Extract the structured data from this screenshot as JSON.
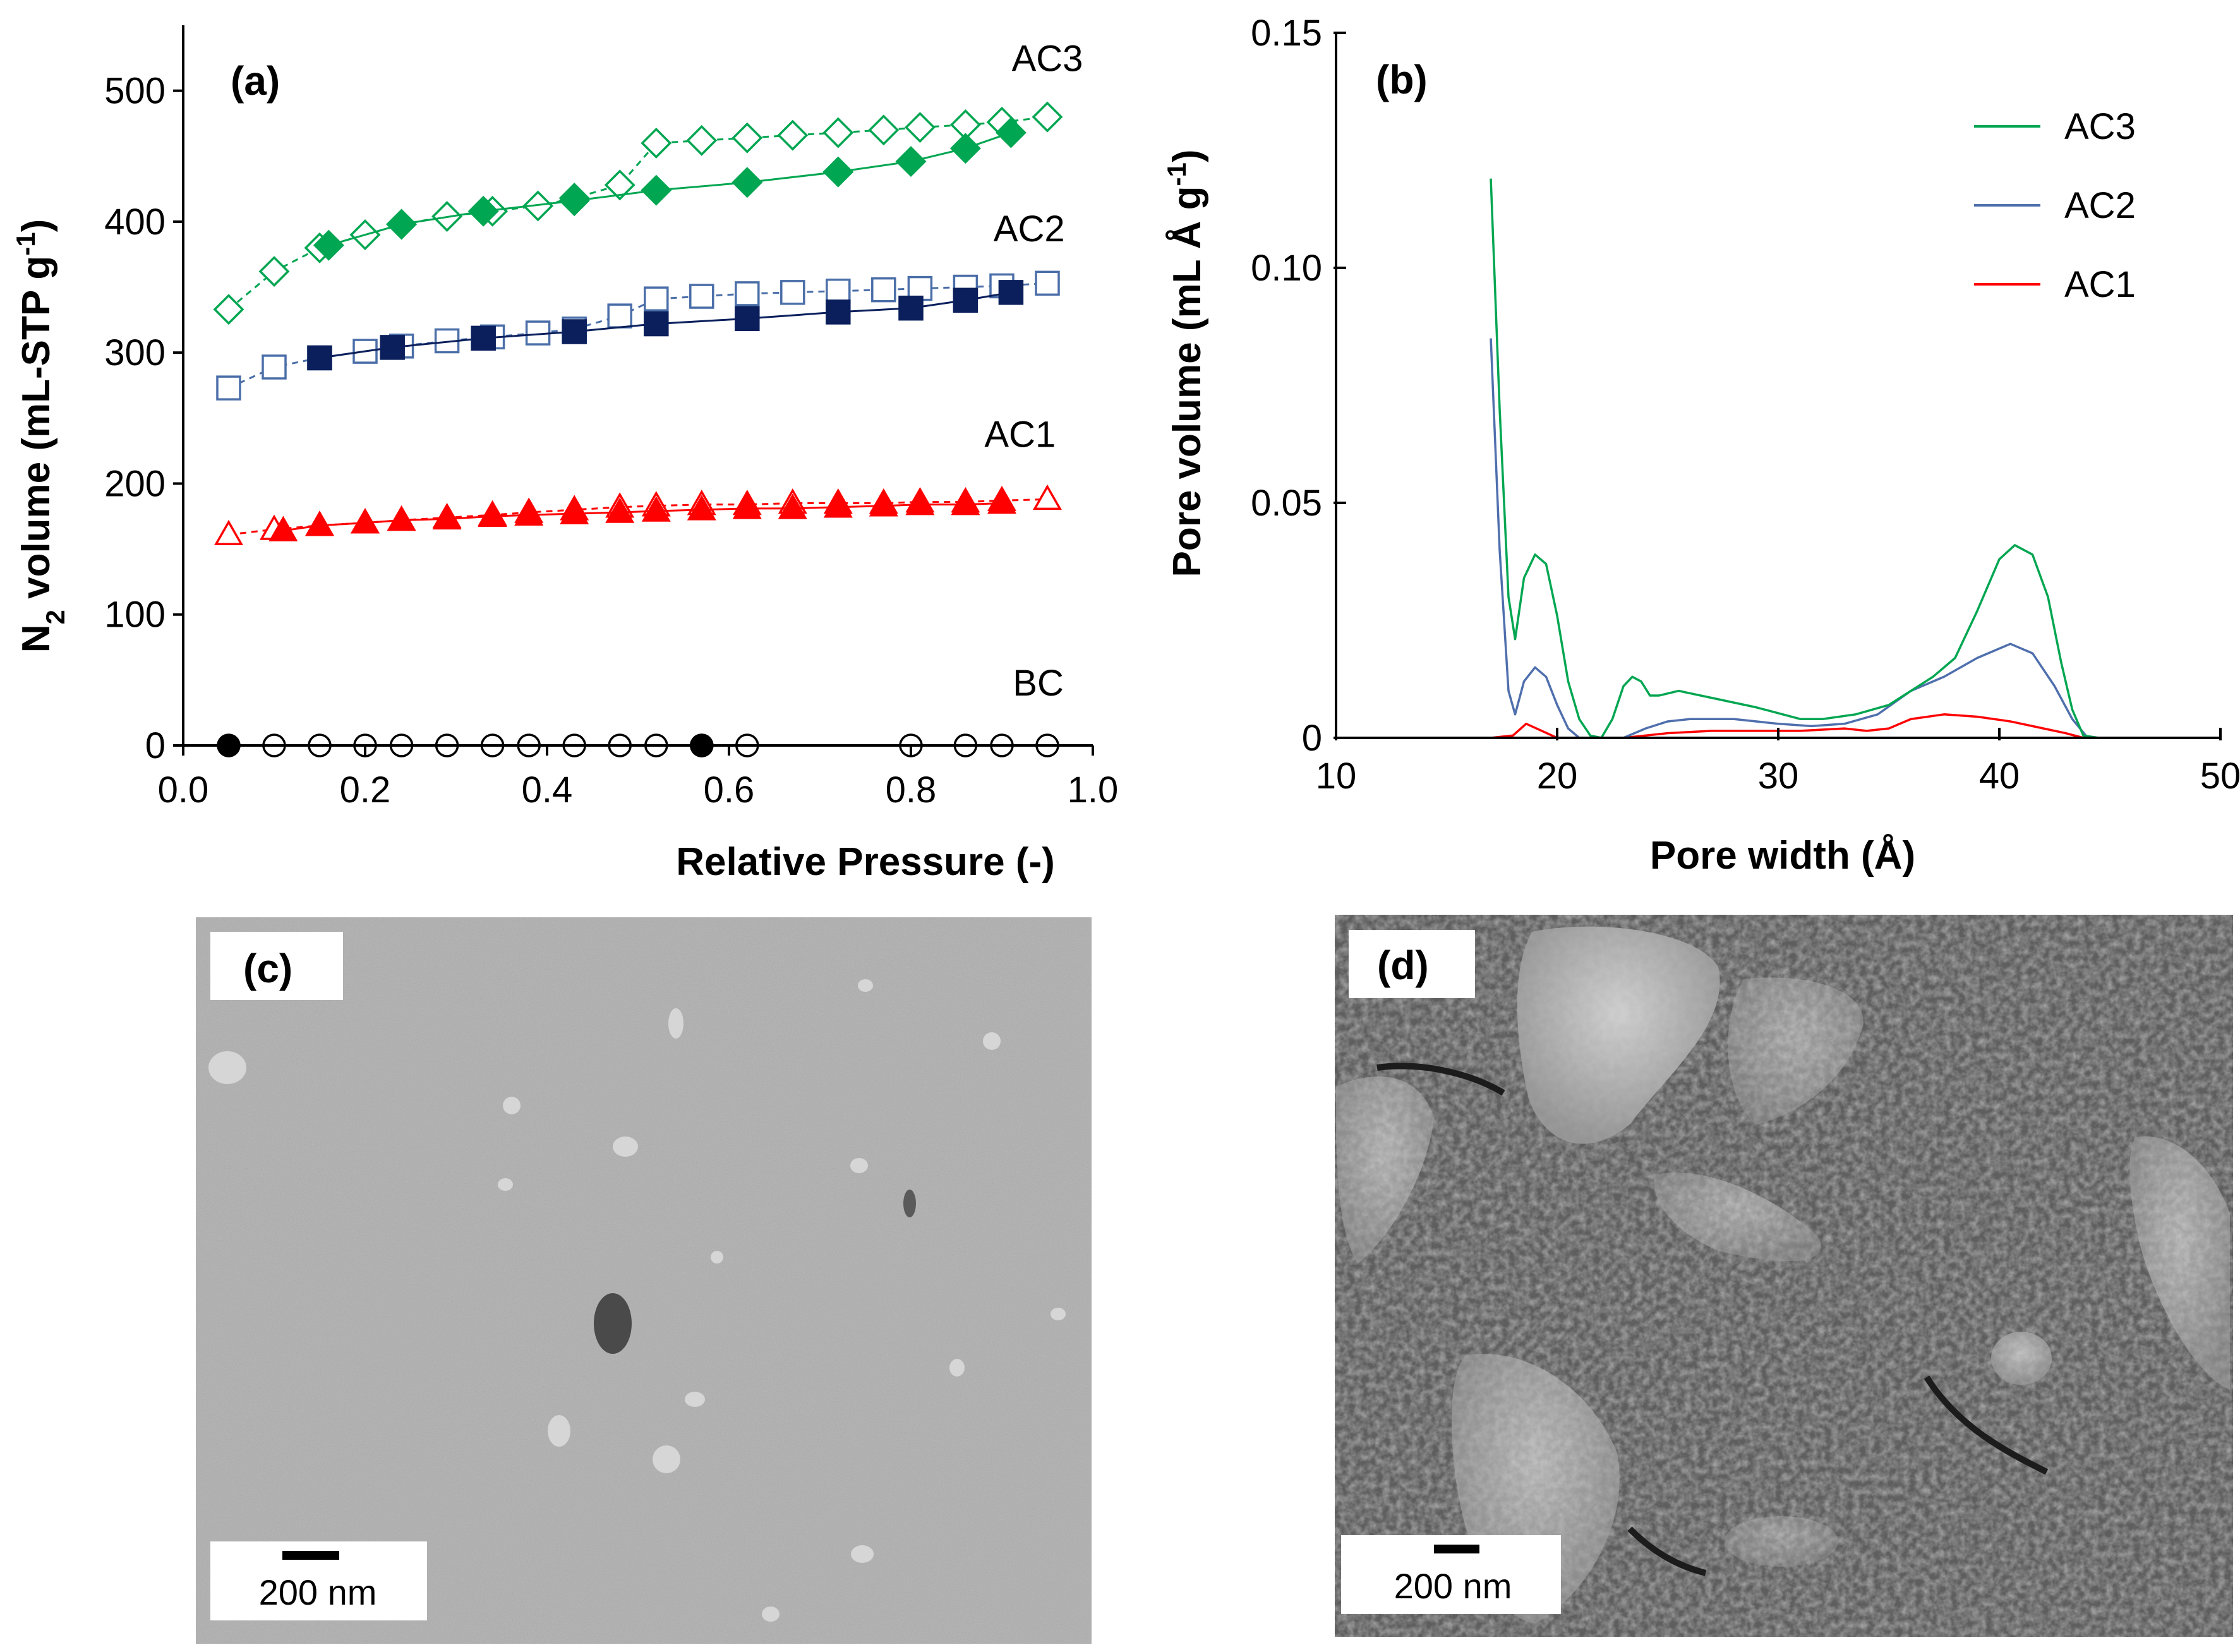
{
  "chart_data": [
    {
      "panel": "(a)",
      "type": "scatter",
      "xlabel": "Relative Pressure (-)",
      "ylabel": "N2 volume (mL-STP g-1)",
      "xlim": [
        0.0,
        1.0
      ],
      "ylim": [
        0,
        550
      ],
      "x_ticks": [
        "0.0",
        "0.2",
        "0.4",
        "0.6",
        "0.8",
        "1.0"
      ],
      "y_ticks": [
        "0",
        "100",
        "200",
        "300",
        "400",
        "500"
      ],
      "grid": false,
      "series": [
        {
          "name": "AC3",
          "color": "#00a651",
          "marker": "diamond",
          "branch": "adsorption",
          "x": [
            0.16,
            0.24,
            0.33,
            0.43,
            0.52,
            0.62,
            0.72,
            0.8,
            0.86,
            0.91
          ],
          "y": [
            382,
            398,
            408,
            416,
            424,
            430,
            438,
            446,
            456,
            468
          ]
        },
        {
          "name": "AC3",
          "color": "#00a651",
          "marker": "diamond",
          "branch": "desorption",
          "x": [
            0.05,
            0.1,
            0.15,
            0.2,
            0.24,
            0.29,
            0.34,
            0.39,
            0.43,
            0.48,
            0.52,
            0.57,
            0.62,
            0.67,
            0.72,
            0.77,
            0.81,
            0.86,
            0.9,
            0.95
          ],
          "y": [
            333,
            362,
            380,
            390,
            398,
            404,
            408,
            412,
            418,
            428,
            460,
            462,
            464,
            466,
            468,
            470,
            472,
            474,
            476,
            480
          ]
        },
        {
          "name": "AC2",
          "color": "#0a1f5c",
          "marker": "square",
          "branch": "adsorption",
          "x": [
            0.15,
            0.23,
            0.33,
            0.43,
            0.52,
            0.62,
            0.72,
            0.8,
            0.86,
            0.91
          ],
          "y": [
            296,
            304,
            311,
            316,
            322,
            326,
            331,
            334,
            340,
            346
          ]
        },
        {
          "name": "AC2",
          "color": "#4a6ea8",
          "marker": "square",
          "branch": "desorption",
          "x": [
            0.05,
            0.1,
            0.15,
            0.2,
            0.24,
            0.29,
            0.34,
            0.39,
            0.43,
            0.48,
            0.52,
            0.57,
            0.62,
            0.67,
            0.72,
            0.77,
            0.81,
            0.86,
            0.9,
            0.95
          ],
          "y": [
            273,
            289,
            296,
            301,
            305,
            309,
            312,
            315,
            318,
            328,
            341,
            343,
            345,
            346,
            347,
            348,
            349,
            350,
            351,
            353
          ]
        },
        {
          "name": "AC1",
          "color": "#ff0000",
          "marker": "triangle",
          "branch": "adsorption",
          "x": [
            0.11,
            0.15,
            0.2,
            0.24,
            0.29,
            0.34,
            0.38,
            0.43,
            0.48,
            0.52,
            0.57,
            0.62,
            0.67,
            0.72,
            0.77,
            0.81,
            0.86,
            0.9
          ],
          "y": [
            164,
            168,
            170,
            172,
            173,
            175,
            176,
            177,
            178,
            179,
            180,
            181,
            181,
            182,
            183,
            184,
            184,
            185
          ]
        },
        {
          "name": "AC1",
          "color": "#ff0000",
          "marker": "triangle",
          "branch": "desorption",
          "x": [
            0.05,
            0.1,
            0.15,
            0.2,
            0.24,
            0.29,
            0.34,
            0.38,
            0.43,
            0.48,
            0.52,
            0.57,
            0.62,
            0.67,
            0.72,
            0.77,
            0.81,
            0.86,
            0.9,
            0.95
          ],
          "y": [
            161,
            165,
            168,
            170,
            172,
            174,
            176,
            178,
            180,
            182,
            183,
            184,
            184,
            185,
            185,
            185,
            186,
            186,
            187,
            188
          ]
        },
        {
          "name": "BC",
          "color": "#000000",
          "marker": "circle",
          "branch": "adsorption",
          "x": [
            0.05,
            0.57
          ],
          "y": [
            0,
            0
          ]
        },
        {
          "name": "BC",
          "color": "#000000",
          "marker": "circle",
          "branch": "desorption",
          "x": [
            0.1,
            0.15,
            0.2,
            0.24,
            0.29,
            0.34,
            0.38,
            0.43,
            0.48,
            0.52,
            0.57,
            0.62,
            0.8,
            0.86,
            0.9,
            0.95
          ],
          "y": [
            0,
            0,
            0,
            0,
            0,
            0,
            0,
            0,
            0,
            0,
            0,
            0,
            0,
            0,
            0,
            0
          ]
        }
      ],
      "annotations": [
        {
          "text": "AC3",
          "x": 0.95,
          "y": 515
        },
        {
          "text": "AC2",
          "x": 0.93,
          "y": 385
        },
        {
          "text": "AC1",
          "x": 0.92,
          "y": 228
        },
        {
          "text": "BC",
          "x": 0.94,
          "y": 38
        }
      ]
    },
    {
      "panel": "(b)",
      "type": "line",
      "xlabel": "Pore width (Å)",
      "ylabel": "Pore volume (mL Å g-1)",
      "xlim": [
        10,
        50
      ],
      "ylim": [
        0,
        0.15
      ],
      "x_ticks": [
        "10",
        "20",
        "30",
        "40",
        "50"
      ],
      "y_ticks": [
        "0",
        "0.05",
        "0.10",
        "0.15"
      ],
      "grid": false,
      "legend_position": "top-right",
      "series": [
        {
          "name": "AC3",
          "color": "#00a651",
          "x": [
            17.0,
            17.4,
            17.8,
            18.1,
            18.5,
            19.0,
            19.5,
            20.0,
            20.5,
            21.0,
            21.5,
            22.0,
            22.5,
            23.0,
            23.4,
            23.8,
            24.2,
            24.6,
            25.5,
            27.0,
            29.0,
            31.0,
            32.0,
            33.5,
            35.0,
            36.0,
            37.0,
            38.0,
            39.0,
            40.0,
            40.7,
            41.5,
            42.2,
            42.8,
            43.3,
            43.8,
            44.5,
            50.0
          ],
          "y": [
            0.119,
            0.07,
            0.03,
            0.021,
            0.034,
            0.039,
            0.037,
            0.026,
            0.012,
            0.004,
            0.0005,
            0.0,
            0.004,
            0.011,
            0.013,
            0.012,
            0.009,
            0.009,
            0.01,
            0.0085,
            0.0065,
            0.004,
            0.004,
            0.005,
            0.007,
            0.01,
            0.013,
            0.017,
            0.027,
            0.038,
            0.041,
            0.039,
            0.03,
            0.016,
            0.006,
            0.0005,
            0.0,
            0.0
          ]
        },
        {
          "name": "AC2",
          "color": "#4f6fad",
          "x": [
            17.0,
            17.4,
            17.8,
            18.1,
            18.5,
            19.0,
            19.5,
            20.0,
            20.5,
            21.0,
            23.0,
            24.0,
            25.0,
            26.0,
            28.0,
            30.0,
            31.5,
            33.0,
            34.5,
            36.0,
            37.5,
            39.0,
            40.5,
            41.5,
            42.5,
            43.3,
            44.0,
            50.0
          ],
          "y": [
            0.085,
            0.04,
            0.01,
            0.005,
            0.012,
            0.015,
            0.013,
            0.007,
            0.002,
            0.0,
            0.0,
            0.002,
            0.0035,
            0.004,
            0.004,
            0.003,
            0.0025,
            0.003,
            0.005,
            0.01,
            0.013,
            0.017,
            0.02,
            0.018,
            0.011,
            0.004,
            0.0,
            0.0
          ]
        },
        {
          "name": "AC1",
          "color": "#ff0000",
          "x": [
            17.0,
            18.0,
            18.6,
            19.3,
            20.0,
            21.0,
            23.0,
            25.0,
            27.0,
            29.0,
            31.0,
            33.0,
            34.0,
            35.0,
            36.0,
            37.5,
            39.0,
            40.5,
            42.0,
            43.0,
            43.8,
            50.0
          ],
          "y": [
            0.0,
            0.0005,
            0.003,
            0.0015,
            0.0,
            0.0,
            0.0,
            0.001,
            0.0015,
            0.0015,
            0.0015,
            0.002,
            0.0015,
            0.002,
            0.004,
            0.005,
            0.0045,
            0.0035,
            0.002,
            0.001,
            0.0,
            0.0
          ]
        }
      ]
    }
  ],
  "sem_images": [
    {
      "panel": "(c)",
      "scale_bar": "200 nm"
    },
    {
      "panel": "(d)",
      "scale_bar": "200 nm"
    }
  ]
}
